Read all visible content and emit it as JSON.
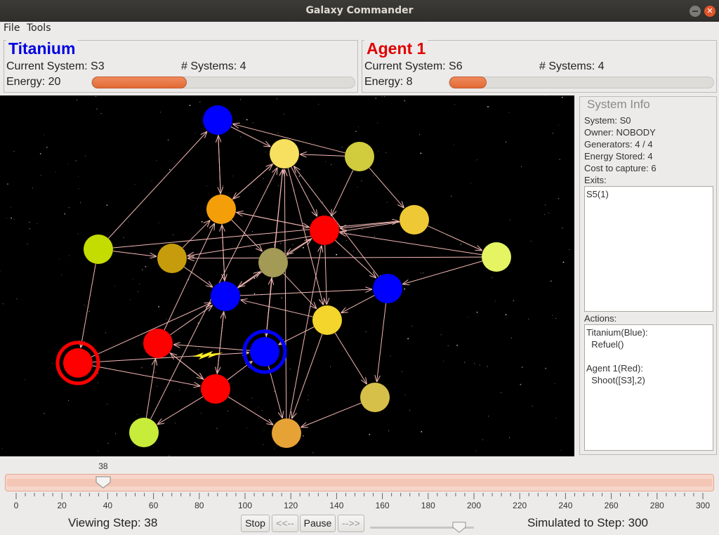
{
  "window": {
    "title": "Galaxy Commander"
  },
  "menu": {
    "file": "File",
    "tools": "Tools"
  },
  "players": [
    {
      "name": "Titanium",
      "color": "#0000e0",
      "current_system_label": "Current System: S3",
      "num_systems_label": "# Systems: 4",
      "energy_label": "Energy: 20",
      "energy_fraction": 0.36
    },
    {
      "name": "Agent 1",
      "color": "#e00000",
      "current_system_label": "Current System: S6",
      "num_systems_label": "# Systems: 4",
      "energy_label": "Energy: 8",
      "energy_fraction": 0.14
    }
  ],
  "system_info": {
    "header": "System Info",
    "system": "System: S0",
    "owner": "Owner: NOBODY",
    "generators": "Generators: 4 / 4",
    "energy_stored": "Energy Stored: 4",
    "cost": "Cost to capture: 6",
    "exits_label": "Exits:",
    "exits": "S5(1)",
    "actions_label": "Actions:",
    "actions": "Titanium(Blue):\n  Refuel()\n\nAgent 1(Red):\n  Shoot([S3],2)"
  },
  "timeline": {
    "value": 38,
    "value_label": "38",
    "max": 300,
    "ticks": [
      "0",
      "20",
      "40",
      "60",
      "80",
      "100",
      "120",
      "140",
      "160",
      "180",
      "200",
      "220",
      "240",
      "260",
      "280",
      "300"
    ]
  },
  "controls": {
    "viewing": "Viewing Step: 38",
    "simulated": "Simulated to Step: 300",
    "stop": "Stop",
    "back": "<<--",
    "pause": "Pause",
    "forward": "-->>",
    "speed_fraction": 0.86
  },
  "galaxy": {
    "colors": {
      "edge": "#f2b8b4",
      "bolt": "#ffee22",
      "blue": "#0000ff",
      "red": "#ff0000"
    }
  }
}
